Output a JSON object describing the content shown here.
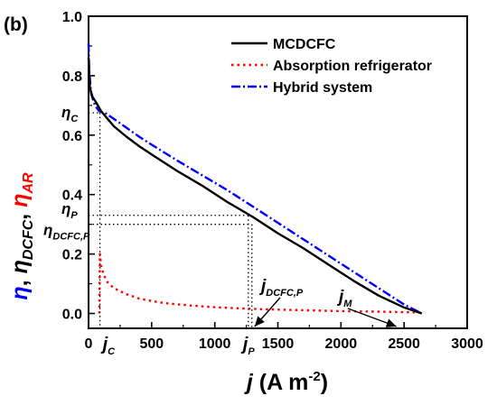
{
  "panel_label": "(b)",
  "chart_data": {
    "type": "line",
    "xlim": [
      0,
      3000
    ],
    "ylim": [
      -0.05,
      1.0
    ],
    "x_ticks": [
      0,
      500,
      1000,
      1500,
      2000,
      2500,
      3000
    ],
    "x_tick_labels": [
      "0",
      "500",
      "1000",
      "1500",
      "2000",
      "2500",
      "3000"
    ],
    "y_ticks": [
      0.0,
      0.2,
      0.4,
      0.6,
      0.8,
      1.0
    ],
    "y_tick_labels": [
      "0.0",
      "0.2",
      "0.4",
      "0.6",
      "0.8",
      "1.0"
    ],
    "xlabel": {
      "main": "j",
      "unit": " (A m",
      "exp": "-2",
      "close": ")"
    },
    "ylabel": {
      "eta": "η",
      "sep1": ", ",
      "eta_dcfc": "η",
      "dcfc_sub": "DCFC",
      "sep2": ", ",
      "eta_ar": "η",
      "ar_sub": "AR"
    },
    "legend_position": "top-right",
    "grid": false,
    "series": [
      {
        "name": "MCDCFC",
        "color": "#000000",
        "dash": "solid",
        "x": [
          0,
          10,
          30,
          60,
          100,
          150,
          200,
          300,
          400,
          500,
          700,
          900,
          1100,
          1300,
          1500,
          1700,
          1900,
          2100,
          2300,
          2500,
          2640
        ],
        "y": [
          0.86,
          0.76,
          0.73,
          0.71,
          0.68,
          0.655,
          0.63,
          0.595,
          0.563,
          0.535,
          0.48,
          0.43,
          0.375,
          0.325,
          0.27,
          0.22,
          0.165,
          0.11,
          0.06,
          0.02,
          0.0
        ]
      },
      {
        "name": "Absorption refrigerator",
        "color": "#ff0000",
        "dash": "dotted",
        "x": [
          85,
          90,
          100,
          120,
          150,
          200,
          300,
          400,
          500,
          600,
          800,
          1000,
          1200,
          1400,
          1700,
          2000,
          2300,
          2640
        ],
        "y": [
          0.0,
          0.2,
          0.16,
          0.13,
          0.105,
          0.085,
          0.065,
          0.05,
          0.042,
          0.035,
          0.027,
          0.021,
          0.017,
          0.014,
          0.011,
          0.008,
          0.006,
          0.003
        ]
      },
      {
        "name": "Hybrid system",
        "color": "#0000ff",
        "dash": "dashdot",
        "x": [
          0,
          5,
          20,
          50,
          85,
          130,
          200,
          300,
          400,
          500,
          700,
          900,
          1100,
          1300,
          1500,
          1700,
          1900,
          2100,
          2300,
          2500,
          2640
        ],
        "y": [
          0.91,
          0.82,
          0.74,
          0.7,
          0.68,
          0.675,
          0.655,
          0.625,
          0.595,
          0.568,
          0.515,
          0.465,
          0.415,
          0.36,
          0.305,
          0.25,
          0.195,
          0.14,
          0.085,
          0.03,
          0.0
        ]
      }
    ],
    "annotations": {
      "eta_c": {
        "label": "η",
        "sub": "C",
        "value": 0.675,
        "j": 90
      },
      "eta_p": {
        "label": "η",
        "sub": "P",
        "value": 0.33,
        "j": 1280
      },
      "eta_dcfc_p": {
        "label": "η",
        "sub": "DCFC,P",
        "value": 0.3,
        "j": 1280
      },
      "j_c": {
        "label": "j",
        "sub": "C",
        "value": 90
      },
      "j_p": {
        "label": "j",
        "sub": "P",
        "value": 1280
      },
      "j_dcfc_p": {
        "label": "j",
        "sub": "DCFC,P",
        "value": 1280
      },
      "j_m": {
        "label": "j",
        "sub": "M",
        "value": 2440
      }
    }
  }
}
